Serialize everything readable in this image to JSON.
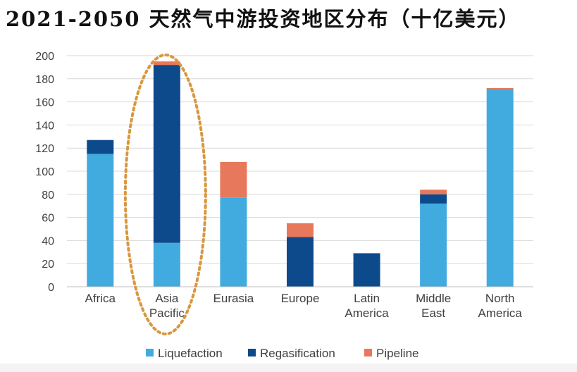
{
  "title": "2021-2050 天然气中游投资地区分布（十亿美元）",
  "colors": {
    "liquefaction": "#41abdf",
    "regasification": "#0d4a8c",
    "pipeline": "#e8785b",
    "highlight": "#d9973e",
    "grid": "#d9d9d9"
  },
  "chart_data": {
    "type": "bar",
    "stacked": true,
    "title": "2021-2050 天然气中游投资地区分布（十亿美元）",
    "xlabel": "",
    "ylabel": "",
    "ylim": [
      0,
      200
    ],
    "yticks": [
      0,
      20,
      40,
      60,
      80,
      100,
      120,
      140,
      160,
      180,
      200
    ],
    "grid": true,
    "legend_position": "bottom",
    "categories": [
      [
        "Africa"
      ],
      [
        "Asia",
        "Pacific"
      ],
      [
        "Eurasia"
      ],
      [
        "Europe"
      ],
      [
        "Latin",
        "America"
      ],
      [
        "Middle",
        "East"
      ],
      [
        "North",
        "America"
      ]
    ],
    "series": [
      {
        "name": "Liquefaction",
        "color_key": "liquefaction",
        "values": [
          115,
          38,
          77,
          0,
          0,
          72,
          171
        ]
      },
      {
        "name": "Regasification",
        "color_key": "regasification",
        "values": [
          12,
          154,
          0,
          43,
          29,
          8,
          0
        ]
      },
      {
        "name": "Pipeline",
        "color_key": "pipeline",
        "values": [
          0,
          3,
          31,
          12,
          0,
          4,
          1
        ]
      }
    ],
    "annotations": [
      {
        "type": "dotted-ellipse",
        "target_category_index": 1
      }
    ]
  }
}
